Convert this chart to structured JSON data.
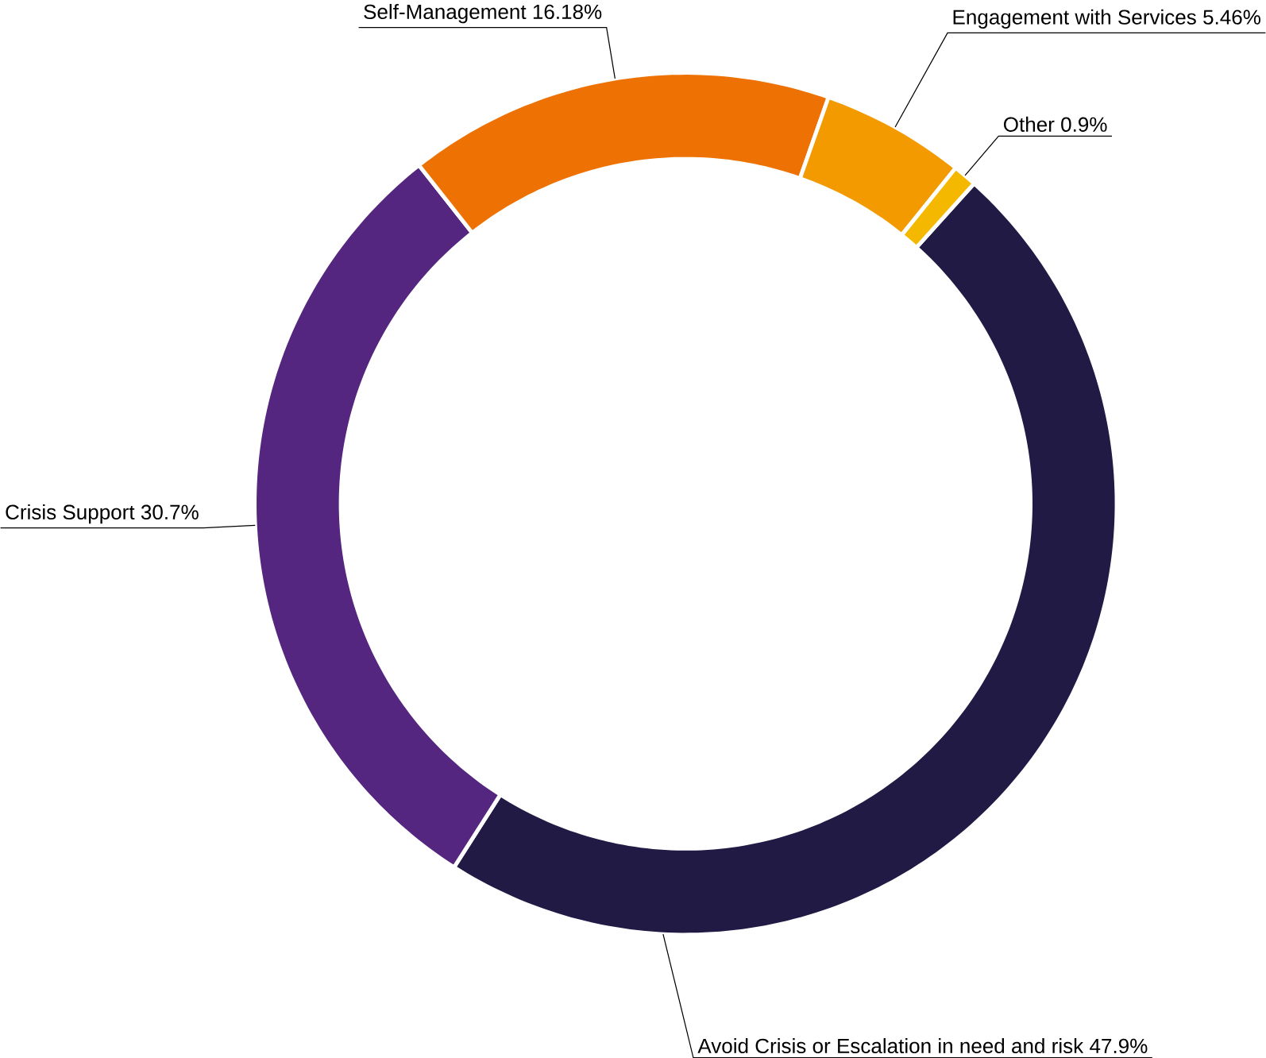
{
  "chart_data": {
    "type": "donut",
    "categories": [
      "Avoid Crisis or Escalation in need and risk",
      "Crisis Support",
      "Self-Management",
      "Engagement with Services",
      "Other"
    ],
    "values": [
      47.9,
      30.7,
      16.18,
      5.46,
      0.9
    ],
    "value_labels": [
      "47.9%",
      "30.7%",
      "16.18%",
      "5.46%",
      "0.9%"
    ],
    "colors": [
      "#201a45",
      "#55267f",
      "#ee7203",
      "#f39a00",
      "#f5b800"
    ]
  }
}
